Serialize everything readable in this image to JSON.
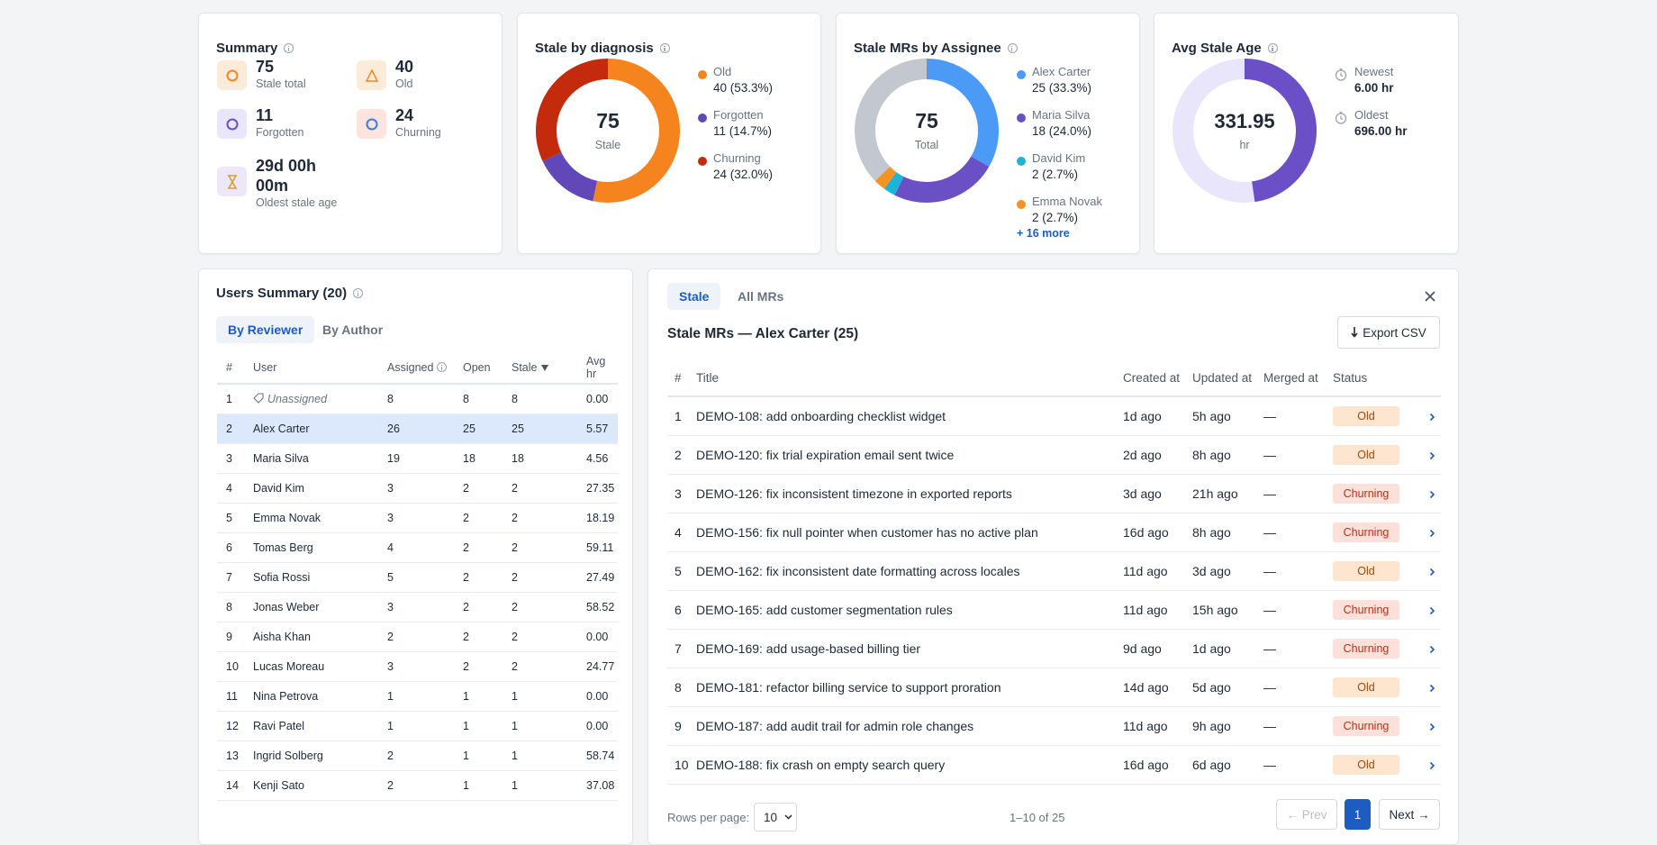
{
  "summary": {
    "title": "Summary",
    "stats": [
      {
        "value": 75,
        "label": "Stale total"
      },
      {
        "value": 40,
        "label": "Old"
      },
      {
        "value": 11,
        "label": "Forgotten"
      },
      {
        "value": 24,
        "label": "Churning"
      }
    ],
    "oldest": {
      "value": "29d 00h 00m",
      "label": "Oldest stale age"
    }
  },
  "diagnosis": {
    "title": "Stale by diagnosis",
    "center_value": 75,
    "center_label": "Stale",
    "segments": [
      {
        "name": "Old",
        "value": 40,
        "label": "40 (53.3%)",
        "color": "#f5841f"
      },
      {
        "name": "Forgotten",
        "value": 11,
        "label": "11 (14.7%)",
        "color": "#6247b8"
      },
      {
        "name": "Churning",
        "value": 24,
        "label": "24 (32.0%)",
        "color": "#c42a0c"
      }
    ]
  },
  "assignee": {
    "title": "Stale MRs by Assignee",
    "center_value": 75,
    "center_label": "Total",
    "segments": [
      {
        "name": "Alex Carter",
        "value": 25,
        "label": "25 (33.3%)",
        "color": "#4b9bf6"
      },
      {
        "name": "Maria Silva",
        "value": 18,
        "label": "18 (24.0%)",
        "color": "#6a50c4"
      },
      {
        "name": "David Kim",
        "value": 2,
        "label": "2 (2.7%)",
        "color": "#1cb4d8"
      },
      {
        "name": "Emma Novak",
        "value": 2,
        "label": "2 (2.7%)",
        "color": "#f39325"
      }
    ],
    "rest_color": "#c3c8d0",
    "more": "+ 16 more"
  },
  "avg_age": {
    "title": "Avg Stale Age",
    "center_value": 331.95,
    "center_unit": "hr",
    "color": "#6a4fc7",
    "track_color": "#e9e5fb",
    "newest": {
      "name": "Newest",
      "value": 6,
      "label": "6.00 hr"
    },
    "oldest": {
      "name": "Oldest",
      "value": 696,
      "label": "696.00 hr"
    }
  },
  "users": {
    "title": "Users Summary (20)",
    "tabs": [
      "By Reviewer",
      "By Author"
    ],
    "columns": [
      "#",
      "User",
      "Assigned",
      "Open",
      "Stale",
      "Avg hr"
    ],
    "rows": [
      [
        "1",
        "Unassigned",
        "8",
        "8",
        "8",
        "0.00"
      ],
      [
        "2",
        "Alex Carter",
        "26",
        "25",
        "25",
        "5.57"
      ],
      [
        "3",
        "Maria Silva",
        "19",
        "18",
        "18",
        "4.56"
      ],
      [
        "4",
        "David Kim",
        "3",
        "2",
        "2",
        "27.35"
      ],
      [
        "5",
        "Emma Novak",
        "3",
        "2",
        "2",
        "18.19"
      ],
      [
        "6",
        "Tomas Berg",
        "4",
        "2",
        "2",
        "59.11"
      ],
      [
        "7",
        "Sofia Rossi",
        "5",
        "2",
        "2",
        "27.49"
      ],
      [
        "8",
        "Jonas Weber",
        "3",
        "2",
        "2",
        "58.52"
      ],
      [
        "9",
        "Aisha Khan",
        "2",
        "2",
        "2",
        "0.00"
      ],
      [
        "10",
        "Lucas Moreau",
        "3",
        "2",
        "2",
        "24.77"
      ],
      [
        "11",
        "Nina Petrova",
        "1",
        "1",
        "1",
        "0.00"
      ],
      [
        "12",
        "Ravi Patel",
        "1",
        "1",
        "1",
        "0.00"
      ],
      [
        "13",
        "Ingrid Solberg",
        "2",
        "1",
        "1",
        "58.74"
      ],
      [
        "14",
        "Kenji Sato",
        "2",
        "1",
        "1",
        "37.08"
      ]
    ]
  },
  "mrs": {
    "tabs": [
      "Stale",
      "All MRs"
    ],
    "title": "Stale MRs — Alex Carter (25)",
    "export": "Export CSV",
    "columns": [
      "#",
      "Title",
      "Created at",
      "Updated at",
      "Merged at",
      "Status"
    ],
    "status_styles": {
      "Old": {
        "bg": "#fde5cf",
        "fg": "#9a4a0c"
      },
      "Churning": {
        "bg": "#fde0d9",
        "fg": "#b3321a"
      }
    },
    "rows": [
      [
        "1",
        "DEMO-108: add onboarding checklist widget",
        "1d ago",
        "5h ago",
        "—",
        "Old"
      ],
      [
        "2",
        "DEMO-120: fix trial expiration email sent twice",
        "2d ago",
        "8h ago",
        "—",
        "Old"
      ],
      [
        "3",
        "DEMO-126: fix inconsistent timezone in exported reports",
        "3d ago",
        "21h ago",
        "—",
        "Churning"
      ],
      [
        "4",
        "DEMO-156: fix null pointer when customer has no active plan",
        "16d ago",
        "8h ago",
        "—",
        "Churning"
      ],
      [
        "5",
        "DEMO-162: fix inconsistent date formatting across locales",
        "11d ago",
        "3d ago",
        "—",
        "Old"
      ],
      [
        "6",
        "DEMO-165: add customer segmentation rules",
        "11d ago",
        "15h ago",
        "—",
        "Churning"
      ],
      [
        "7",
        "DEMO-169: add usage-based billing tier",
        "9d ago",
        "1d ago",
        "—",
        "Churning"
      ],
      [
        "8",
        "DEMO-181: refactor billing service to support proration",
        "14d ago",
        "5d ago",
        "—",
        "Old"
      ],
      [
        "9",
        "DEMO-187: add audit trail for admin role changes",
        "11d ago",
        "9h ago",
        "—",
        "Churning"
      ],
      [
        "10",
        "DEMO-188: fix crash on empty search query",
        "16d ago",
        "6d ago",
        "—",
        "Old"
      ]
    ],
    "pagination": {
      "rows_per_page": "Rows per page:",
      "page_size": "10",
      "range": "1–10 of 25",
      "prev": "← Prev",
      "page": "1",
      "next": "Next →"
    }
  }
}
